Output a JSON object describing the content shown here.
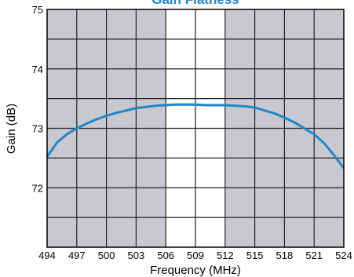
{
  "chart_data": {
    "type": "line",
    "title": "Gain Flatness",
    "xlabel": "Frequency (MHz)",
    "ylabel": "Gain (dB)",
    "xlim": [
      494,
      524
    ],
    "ylim": [
      71,
      75
    ],
    "x_ticks": [
      494,
      497,
      500,
      503,
      506,
      509,
      512,
      515,
      518,
      521,
      524
    ],
    "y_ticks": [
      72,
      73,
      74,
      75
    ],
    "grid": true,
    "shaded_bands": [
      [
        494,
        506
      ],
      [
        512,
        524
      ]
    ],
    "colors": {
      "line": "#1f86c8",
      "title": "#1f86c8",
      "band": "#c8c8d0",
      "grid": "#222222",
      "frame": "#000000"
    },
    "series": [
      {
        "x": [
          494,
          495,
          496,
          497,
          498,
          499,
          500,
          501,
          502,
          503,
          504,
          505,
          506,
          507,
          508,
          509,
          510,
          511,
          512,
          513,
          514,
          515,
          516,
          517,
          518,
          519,
          520,
          521,
          522,
          523,
          524
        ],
        "values": [
          72.52,
          72.76,
          72.9,
          73.0,
          73.08,
          73.15,
          73.21,
          73.26,
          73.3,
          73.34,
          73.36,
          73.38,
          73.39,
          73.4,
          73.4,
          73.4,
          73.39,
          73.39,
          73.39,
          73.38,
          73.37,
          73.35,
          73.3,
          73.25,
          73.18,
          73.1,
          73.0,
          72.9,
          72.75,
          72.55,
          72.33
        ]
      }
    ]
  }
}
